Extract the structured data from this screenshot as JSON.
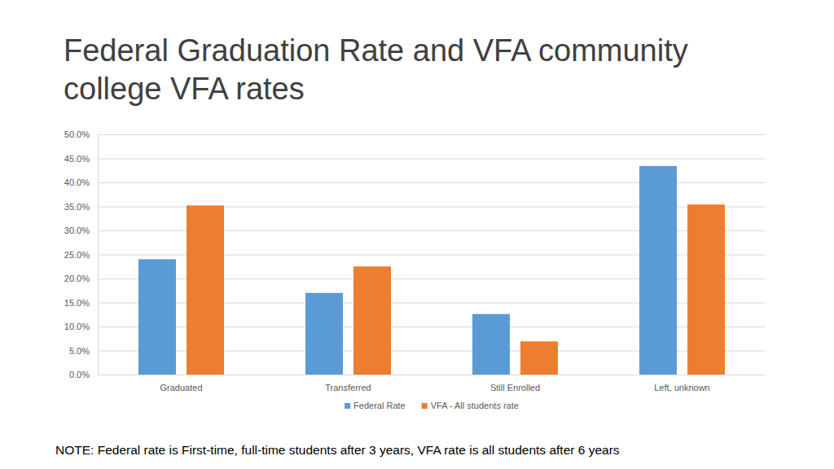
{
  "chart_data": {
    "type": "bar",
    "title": "Federal Graduation Rate and VFA community college VFA rates",
    "annotations": [
      "NOTE: Federal rate is First-time, full-time students after 3 years, VFA rate is all students after 6 years"
    ],
    "categories": [
      "Graduated",
      "Transferred",
      "Still Enrolled",
      "Left, unknown"
    ],
    "series": [
      {
        "name": "Federal Rate",
        "color": "#5b9bd5",
        "values": [
          24.0,
          17.0,
          12.6,
          43.4
        ]
      },
      {
        "name": "VFA - All students rate",
        "color": "#ed7d31",
        "values": [
          35.2,
          22.5,
          6.9,
          35.4
        ]
      }
    ],
    "ylim": [
      0,
      50
    ],
    "yticks": [
      {
        "value": 0,
        "label": "0.0%"
      },
      {
        "value": 5,
        "label": "5.0%"
      },
      {
        "value": 10,
        "label": "10.0%"
      },
      {
        "value": 15,
        "label": "15.0%"
      },
      {
        "value": 20,
        "label": "20.0%"
      },
      {
        "value": 25,
        "label": "25.0%"
      },
      {
        "value": 30,
        "label": "30.0%"
      },
      {
        "value": 35,
        "label": "35.0%"
      },
      {
        "value": 40,
        "label": "40.0%"
      },
      {
        "value": 45,
        "label": "45.0%"
      },
      {
        "value": 50,
        "label": "50.0%"
      }
    ],
    "grid": true,
    "legend": "bottom"
  }
}
